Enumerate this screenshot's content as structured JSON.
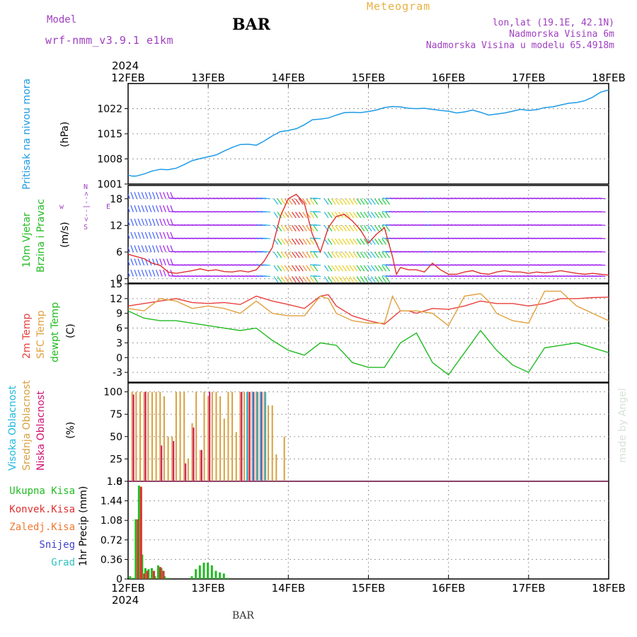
{
  "header": {
    "model_label": "Model",
    "model_name": "wrf-nmm_v3.9.1  e1km",
    "station": "BAR",
    "product": "Meteogram",
    "coords": "lon,lat (19.1E, 42.1N)",
    "elevation": "Nadmorska Visina 6m",
    "model_elevation": "Nadmorska Visina u modelu 65.4918m",
    "footer_station": "BAR",
    "credit": "made by Angel"
  },
  "colors": {
    "pressure": "#1e9be6",
    "temp2m": "#e8403c",
    "sfc_temp": "#e0a040",
    "dewpoint": "#22bb22",
    "cloud_high": "#22b8e0",
    "cloud_mid": "#d8a040",
    "cloud_low": "#d01070",
    "wind_speed": "#e03030",
    "precip_total": "#22bb22",
    "precip_conv": "#e03030",
    "purple_text": "#a040c0",
    "title_orange": "#e8b040"
  },
  "chart_data": [
    {
      "type": "line",
      "panel": "pressure",
      "title": "BAR",
      "x_year_label": "2024",
      "x_ticks": [
        "12FEB",
        "13FEB",
        "14FEB",
        "15FEB",
        "16FEB",
        "17FEB",
        "18FEB"
      ],
      "ylabel": [
        "Pritisak na nivou mora",
        "(hPa)"
      ],
      "y_ticks": [
        1001,
        1008,
        1015,
        1022
      ],
      "ylim": [
        1001,
        1029
      ],
      "grid": true,
      "series": [
        {
          "x": [
            0,
            0.05,
            0.1,
            0.2,
            0.3,
            0.4,
            0.5,
            0.6,
            0.7,
            0.8,
            0.9,
            1.0,
            1.1,
            1.2,
            1.3,
            1.4,
            1.5,
            1.6,
            1.7,
            1.8,
            1.9,
            2.0,
            2.1,
            2.2,
            2.3,
            2.4,
            2.5,
            2.6,
            2.7,
            2.8,
            2.9,
            3.0,
            3.1,
            3.2,
            3.3,
            3.4,
            3.5,
            3.6,
            3.7,
            3.8,
            3.9,
            4.0,
            4.1,
            4.2,
            4.3,
            4.4,
            4.5,
            4.6,
            4.7,
            4.8,
            4.9,
            5.0,
            5.1,
            5.2,
            5.3,
            5.4,
            5.5,
            5.6,
            5.7,
            5.8,
            5.9,
            6.0
          ],
          "values": [
            1003.5,
            1003.2,
            1003.2,
            1003.8,
            1004.6,
            1005.1,
            1005.0,
            1005.4,
            1006.4,
            1007.5,
            1008.1,
            1008.6,
            1009.1,
            1010.2,
            1011.2,
            1012.0,
            1012.1,
            1011.8,
            1013.0,
            1014.4,
            1015.6,
            1015.9,
            1016.4,
            1017.5,
            1018.9,
            1019.1,
            1019.4,
            1020.2,
            1020.9,
            1021.0,
            1020.9,
            1021.2,
            1021.6,
            1022.3,
            1022.6,
            1022.5,
            1022.1,
            1022.0,
            1022.1,
            1021.8,
            1021.5,
            1021.3,
            1020.8,
            1021.1,
            1021.6,
            1021.0,
            1020.2,
            1020.5,
            1020.8,
            1021.3,
            1021.8,
            1021.5,
            1021.7,
            1022.3,
            1022.5,
            1023.0,
            1023.5,
            1023.7,
            1024.2,
            1025.2,
            1026.6,
            1027.2
          ]
        }
      ]
    },
    {
      "type": "line",
      "panel": "wind",
      "ylabel": [
        "10m Vjetar",
        "Brzina i Pravac",
        "(m/s)"
      ],
      "direction_legend": [
        "w",
        "E",
        "N",
        "S",
        "<--|-->"
      ],
      "y_ticks": [
        0,
        6,
        12,
        18
      ],
      "ylim": [
        -1,
        21
      ],
      "grid": true,
      "series": [
        {
          "name": "Brzina",
          "x": [
            0,
            0.1,
            0.2,
            0.3,
            0.4,
            0.5,
            0.6,
            0.7,
            0.8,
            0.9,
            1.0,
            1.1,
            1.2,
            1.3,
            1.4,
            1.5,
            1.6,
            1.7,
            1.8,
            1.9,
            2.0,
            2.1,
            2.2,
            2.3,
            2.4,
            2.5,
            2.6,
            2.7,
            2.8,
            2.9,
            3.0,
            3.1,
            3.2,
            3.3,
            3.35,
            3.4,
            3.5,
            3.6,
            3.7,
            3.8,
            3.9,
            4.0,
            4.1,
            4.2,
            4.3,
            4.4,
            4.5,
            4.6,
            4.7,
            4.8,
            4.9,
            5.0,
            5.1,
            5.2,
            5.3,
            5.4,
            5.5,
            5.6,
            5.7,
            5.8,
            5.9,
            6.0
          ],
          "values": [
            5.5,
            5.0,
            4.5,
            3.5,
            3.0,
            1.5,
            1.2,
            1.5,
            1.8,
            2.2,
            1.8,
            2.0,
            1.6,
            1.5,
            1.8,
            1.5,
            2.0,
            4.0,
            7.0,
            14.0,
            18.0,
            19.0,
            17.0,
            10.0,
            6.0,
            11.5,
            14.0,
            14.5,
            13.0,
            11.0,
            8.0,
            10.0,
            11.5,
            5.0,
            1.0,
            2.5,
            2.0,
            2.0,
            1.5,
            3.5,
            2.0,
            1.0,
            1.0,
            1.5,
            1.8,
            1.2,
            1.0,
            1.5,
            1.8,
            1.5,
            1.5,
            1.2,
            1.5,
            1.3,
            1.5,
            1.8,
            1.5,
            1.2,
            1.0,
            1.2,
            1.0,
            0.8
          ]
        }
      ]
    },
    {
      "type": "line",
      "panel": "temperature",
      "ylabel": [
        "2m Temp",
        "SFC Temp",
        "dewpt Temp",
        "(C)"
      ],
      "y_ticks": [
        -3,
        0,
        3,
        6,
        9,
        12,
        15
      ],
      "ylim": [
        -5,
        15
      ],
      "grid": true,
      "series": [
        {
          "name": "2m Temp",
          "x": [
            0,
            0.2,
            0.4,
            0.6,
            0.8,
            1.0,
            1.2,
            1.4,
            1.6,
            1.8,
            2.0,
            2.2,
            2.4,
            2.5,
            2.6,
            2.8,
            3.0,
            3.2,
            3.4,
            3.5,
            3.6,
            3.8,
            4.0,
            4.2,
            4.4,
            4.6,
            4.8,
            5.0,
            5.2,
            5.4,
            5.6,
            5.8,
            6.0
          ],
          "values": [
            10.5,
            11.0,
            11.5,
            12.0,
            11.2,
            11.0,
            11.2,
            10.8,
            12.5,
            11.5,
            10.8,
            10.0,
            12.5,
            12.8,
            10.5,
            8.5,
            7.5,
            6.8,
            9.5,
            9.5,
            9.0,
            10.0,
            9.8,
            10.5,
            11.5,
            11.0,
            11.0,
            10.5,
            11.0,
            12.0,
            12.0,
            12.2,
            12.3
          ]
        },
        {
          "name": "SFC Temp",
          "x": [
            0,
            0.2,
            0.4,
            0.6,
            0.8,
            1.0,
            1.2,
            1.4,
            1.6,
            1.8,
            2.0,
            2.2,
            2.4,
            2.5,
            2.6,
            2.8,
            3.0,
            3.2,
            3.3,
            3.4,
            3.6,
            3.8,
            4.0,
            4.2,
            4.4,
            4.5,
            4.6,
            4.8,
            5.0,
            5.2,
            5.4,
            5.5,
            5.6,
            5.8,
            6.0
          ],
          "values": [
            10.0,
            9.5,
            12.0,
            11.5,
            10.0,
            10.5,
            10.0,
            9.0,
            11.5,
            9.0,
            8.5,
            8.5,
            12.5,
            12.0,
            9.0,
            7.5,
            7.0,
            7.0,
            12.5,
            9.5,
            9.5,
            9.0,
            6.5,
            12.5,
            13.0,
            11.5,
            9.0,
            7.5,
            7.0,
            13.5,
            13.5,
            12.0,
            10.5,
            9.0,
            7.5
          ]
        },
        {
          "name": "dewpt Temp",
          "x": [
            0,
            0.2,
            0.4,
            0.6,
            0.8,
            1.0,
            1.2,
            1.4,
            1.6,
            1.8,
            2.0,
            2.2,
            2.4,
            2.6,
            2.8,
            3.0,
            3.2,
            3.4,
            3.6,
            3.8,
            4.0,
            4.2,
            4.4,
            4.6,
            4.8,
            5.0,
            5.2,
            5.4,
            5.6,
            5.8,
            6.0
          ],
          "values": [
            9.5,
            8.0,
            7.5,
            7.5,
            7.0,
            6.5,
            6.0,
            5.5,
            6.0,
            3.5,
            1.5,
            0.5,
            3.0,
            2.5,
            -1.0,
            -2.0,
            -2.0,
            3.0,
            5.0,
            -1.0,
            -3.5,
            1.0,
            5.5,
            1.5,
            -1.5,
            -3.0,
            2.0,
            2.5,
            3.0,
            2.0,
            1.0
          ]
        }
      ]
    },
    {
      "type": "bar",
      "panel": "clouds",
      "ylabel": [
        "Visoka Oblacnost",
        "Srednja Oblacnost",
        "Niska Oblacnost",
        "(%)"
      ],
      "y_ticks": [
        0,
        25,
        50,
        75,
        100
      ],
      "ylim": [
        0,
        100
      ],
      "grid": true,
      "series": [
        {
          "name": "Srednja Oblacnost",
          "x": [
            0.05,
            0.1,
            0.15,
            0.2,
            0.25,
            0.3,
            0.35,
            0.4,
            0.45,
            0.5,
            0.55,
            0.6,
            0.65,
            0.7,
            0.75,
            0.8,
            0.85,
            0.9,
            0.95,
            1.0,
            1.05,
            1.1,
            1.15,
            1.2,
            1.25,
            1.3,
            1.35,
            1.4,
            1.45,
            1.5,
            1.55,
            1.6,
            1.65,
            1.7,
            1.75,
            1.8,
            1.85,
            1.9,
            1.95
          ],
          "values": [
            100,
            100,
            100,
            100,
            100,
            100,
            100,
            100,
            95,
            50,
            50,
            100,
            100,
            100,
            25,
            65,
            100,
            35,
            100,
            95,
            100,
            100,
            95,
            70,
            100,
            100,
            55,
            100,
            100,
            100,
            100,
            100,
            100,
            100,
            85,
            85,
            30,
            0,
            50
          ]
        },
        {
          "name": "Niska Oblacnost",
          "x": [
            0.05,
            0.2,
            0.4,
            0.55,
            0.7,
            0.8,
            0.9,
            1.0,
            1.4,
            1.5,
            1.55,
            1.6,
            1.65
          ],
          "values": [
            97,
            100,
            40,
            45,
            20,
            60,
            35,
            100,
            100,
            100,
            100,
            100,
            100
          ]
        },
        {
          "name": "Visoka Oblacnost",
          "x": [
            1.45,
            1.52,
            1.58,
            1.62,
            1.68
          ],
          "values": [
            100,
            100,
            100,
            100,
            100
          ]
        }
      ]
    },
    {
      "type": "bar",
      "panel": "precip",
      "ylabel": [
        "1hr Precip (mm)"
      ],
      "legend": [
        "Ukupna Kisa",
        "Konvek.Kisa",
        "Zaledj.Kisa",
        "Snijeg",
        "Grad"
      ],
      "y_ticks": [
        0,
        0.36,
        0.72,
        1.08,
        1.44,
        1.8
      ],
      "ylim": [
        0,
        1.8
      ],
      "grid": true,
      "series": [
        {
          "name": "Ukupna Kisa",
          "x": [
            0.03,
            0.06,
            0.1,
            0.14,
            0.18,
            0.22,
            0.26,
            0.3,
            0.34,
            0.38,
            0.42,
            0.46,
            0.5,
            0.8,
            0.85,
            0.9,
            0.95,
            1.0,
            1.05,
            1.1,
            1.15,
            1.2,
            1.25
          ],
          "values": [
            0.05,
            0.02,
            1.1,
            1.72,
            0.45,
            0.2,
            0.18,
            0.2,
            0.05,
            0.25,
            0.2,
            0.05,
            0.02,
            0.05,
            0.18,
            0.25,
            0.3,
            0.3,
            0.25,
            0.15,
            0.12,
            0.1,
            0.02
          ]
        },
        {
          "name": "Konvek.Kisa",
          "x": [
            0.1,
            0.14,
            0.18,
            0.22,
            0.3,
            0.38,
            0.42
          ],
          "values": [
            1.1,
            1.7,
            0.1,
            0.15,
            0.15,
            0.22,
            0.15
          ]
        }
      ]
    }
  ]
}
